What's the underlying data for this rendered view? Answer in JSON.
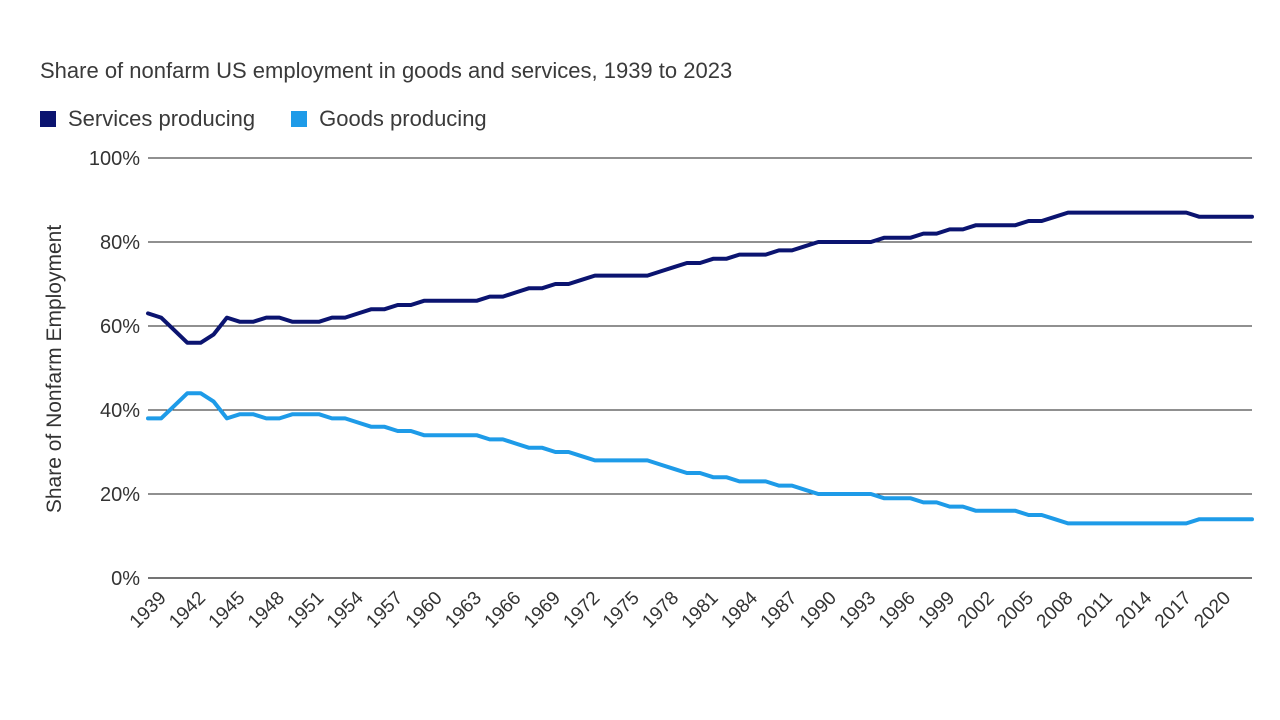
{
  "chart_data": {
    "type": "line",
    "title": "Share of nonfarm US employment in goods and services, 1939 to 2023",
    "xlabel": "",
    "ylabel": "Share of Nonfarm Employment",
    "ylim": [
      0,
      100
    ],
    "xlim": [
      1939,
      2023
    ],
    "y_ticks": [
      "0%",
      "20%",
      "40%",
      "60%",
      "80%",
      "100%"
    ],
    "y_tick_values": [
      0,
      20,
      40,
      60,
      80,
      100
    ],
    "x_ticks": [
      "1939",
      "1942",
      "1945",
      "1948",
      "1951",
      "1954",
      "1957",
      "1960",
      "1963",
      "1966",
      "1969",
      "1972",
      "1975",
      "1978",
      "1981",
      "1984",
      "1987",
      "1990",
      "1993",
      "1996",
      "1999",
      "2002",
      "2005",
      "2008",
      "2011",
      "2014",
      "2017",
      "2020"
    ],
    "grid": true,
    "legend_position": "top-left",
    "series": [
      {
        "name": "Services producing",
        "color": "#0b1470",
        "x": [
          1939,
          1940,
          1941,
          1942,
          1943,
          1944,
          1945,
          1946,
          1947,
          1948,
          1949,
          1950,
          1951,
          1952,
          1953,
          1954,
          1955,
          1956,
          1957,
          1958,
          1959,
          1960,
          1961,
          1962,
          1963,
          1964,
          1965,
          1966,
          1967,
          1968,
          1969,
          1970,
          1971,
          1972,
          1973,
          1974,
          1975,
          1976,
          1977,
          1978,
          1979,
          1980,
          1981,
          1982,
          1983,
          1984,
          1985,
          1986,
          1987,
          1988,
          1989,
          1990,
          1991,
          1992,
          1993,
          1994,
          1995,
          1996,
          1997,
          1998,
          1999,
          2000,
          2001,
          2002,
          2003,
          2004,
          2005,
          2006,
          2007,
          2008,
          2009,
          2010,
          2011,
          2012,
          2013,
          2014,
          2015,
          2016,
          2017,
          2018,
          2019,
          2020,
          2021,
          2022,
          2023
        ],
        "values": [
          63,
          62,
          59,
          56,
          56,
          58,
          62,
          61,
          61,
          62,
          62,
          61,
          61,
          61,
          62,
          62,
          63,
          64,
          64,
          65,
          65,
          66,
          66,
          66,
          66,
          66,
          67,
          67,
          68,
          69,
          69,
          70,
          70,
          71,
          72,
          72,
          72,
          72,
          72,
          73,
          74,
          75,
          75,
          76,
          76,
          77,
          77,
          77,
          78,
          78,
          79,
          80,
          80,
          80,
          80,
          80,
          81,
          81,
          81,
          82,
          82,
          83,
          83,
          84,
          84,
          84,
          84,
          85,
          85,
          86,
          87,
          87,
          87,
          87,
          87,
          87,
          87,
          87,
          87,
          87,
          86,
          86,
          86,
          86,
          86
        ]
      },
      {
        "name": "Goods producing",
        "color": "#1e9be8",
        "x": [
          1939,
          1940,
          1941,
          1942,
          1943,
          1944,
          1945,
          1946,
          1947,
          1948,
          1949,
          1950,
          1951,
          1952,
          1953,
          1954,
          1955,
          1956,
          1957,
          1958,
          1959,
          1960,
          1961,
          1962,
          1963,
          1964,
          1965,
          1966,
          1967,
          1968,
          1969,
          1970,
          1971,
          1972,
          1973,
          1974,
          1975,
          1976,
          1977,
          1978,
          1979,
          1980,
          1981,
          1982,
          1983,
          1984,
          1985,
          1986,
          1987,
          1988,
          1989,
          1990,
          1991,
          1992,
          1993,
          1994,
          1995,
          1996,
          1997,
          1998,
          1999,
          2000,
          2001,
          2002,
          2003,
          2004,
          2005,
          2006,
          2007,
          2008,
          2009,
          2010,
          2011,
          2012,
          2013,
          2014,
          2015,
          2016,
          2017,
          2018,
          2019,
          2020,
          2021,
          2022,
          2023
        ],
        "values": [
          38,
          38,
          41,
          44,
          44,
          42,
          38,
          39,
          39,
          38,
          38,
          39,
          39,
          39,
          38,
          38,
          37,
          36,
          36,
          35,
          35,
          34,
          34,
          34,
          34,
          34,
          33,
          33,
          32,
          31,
          31,
          30,
          30,
          29,
          28,
          28,
          28,
          28,
          28,
          27,
          26,
          25,
          25,
          24,
          24,
          23,
          23,
          23,
          22,
          22,
          21,
          20,
          20,
          20,
          20,
          20,
          19,
          19,
          19,
          18,
          18,
          17,
          17,
          16,
          16,
          16,
          16,
          15,
          15,
          14,
          13,
          13,
          13,
          13,
          13,
          13,
          13,
          13,
          13,
          13,
          14,
          14,
          14,
          14,
          14
        ]
      }
    ]
  }
}
